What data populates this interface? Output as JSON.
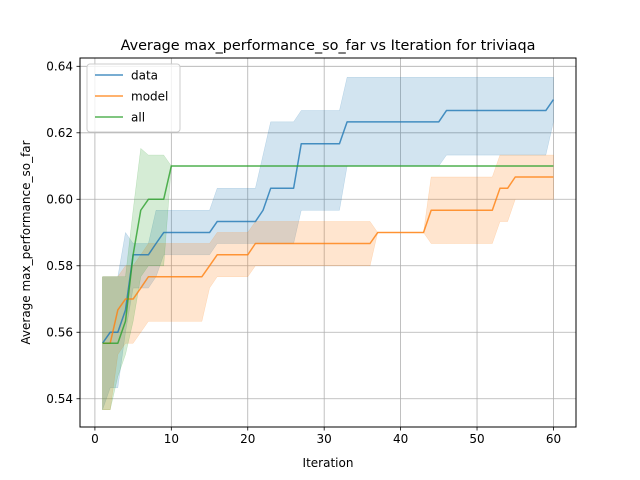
{
  "chart_data": {
    "type": "line",
    "title": "Average max_performance_so_far vs Iteration for triviaqa",
    "xlabel": "Iteration",
    "ylabel": "Average max_performance_so_far",
    "xlim": [
      -1.95,
      62.95
    ],
    "ylim": [
      0.5315,
      0.6425
    ],
    "xticks": [
      0,
      10,
      20,
      30,
      40,
      50,
      60
    ],
    "yticks": [
      0.54,
      0.56,
      0.58,
      0.6,
      0.62,
      0.64
    ],
    "ytick_labels": [
      "0.54",
      "0.56",
      "0.58",
      "0.60",
      "0.62",
      "0.64"
    ],
    "grid": true,
    "legend_position": "upper-left",
    "series": [
      {
        "name": "data",
        "color": "#1f77b4",
        "x": [
          1,
          2,
          3,
          4,
          5,
          6,
          7,
          8,
          9,
          10,
          11,
          12,
          13,
          14,
          15,
          16,
          17,
          18,
          19,
          20,
          21,
          22,
          23,
          24,
          25,
          26,
          27,
          28,
          29,
          30,
          31,
          32,
          33,
          34,
          35,
          36,
          37,
          38,
          39,
          40,
          41,
          42,
          43,
          44,
          45,
          46,
          47,
          48,
          49,
          50,
          51,
          52,
          53,
          54,
          55,
          56,
          57,
          58,
          59,
          60
        ],
        "y": [
          0.5567,
          0.56,
          0.56,
          0.5667,
          0.5833,
          0.5833,
          0.5833,
          0.5867,
          0.59,
          0.59,
          0.59,
          0.59,
          0.59,
          0.59,
          0.59,
          0.5933,
          0.5933,
          0.5933,
          0.5933,
          0.5933,
          0.5933,
          0.5967,
          0.6033,
          0.6033,
          0.6033,
          0.6033,
          0.6167,
          0.6167,
          0.6167,
          0.6167,
          0.6167,
          0.6167,
          0.6233,
          0.6233,
          0.6233,
          0.6233,
          0.6233,
          0.6233,
          0.6233,
          0.6233,
          0.6233,
          0.6233,
          0.6233,
          0.6233,
          0.6233,
          0.6267,
          0.6267,
          0.6267,
          0.6267,
          0.6267,
          0.6267,
          0.6267,
          0.6267,
          0.6267,
          0.6267,
          0.6267,
          0.6267,
          0.6267,
          0.6267,
          0.63
        ],
        "lower": [
          0.5367,
          0.5433,
          0.5433,
          0.56,
          0.5733,
          0.5733,
          0.5733,
          0.5767,
          0.5833,
          0.5833,
          0.5833,
          0.5833,
          0.5833,
          0.5833,
          0.5833,
          0.5867,
          0.5867,
          0.5867,
          0.5867,
          0.5867,
          0.5867,
          0.5867,
          0.5867,
          0.5867,
          0.5867,
          0.5867,
          0.5967,
          0.5967,
          0.5967,
          0.5967,
          0.5967,
          0.5967,
          0.61,
          0.61,
          0.61,
          0.61,
          0.61,
          0.61,
          0.61,
          0.61,
          0.61,
          0.61,
          0.61,
          0.61,
          0.61,
          0.6133,
          0.6133,
          0.6133,
          0.6133,
          0.6133,
          0.6133,
          0.6133,
          0.6133,
          0.6133,
          0.6133,
          0.6133,
          0.6133,
          0.6133,
          0.6133,
          0.6233
        ],
        "upper": [
          0.5767,
          0.5767,
          0.5767,
          0.59,
          0.5867,
          0.5867,
          0.5867,
          0.5967,
          0.5967,
          0.5967,
          0.5967,
          0.5967,
          0.5967,
          0.5967,
          0.5967,
          0.6033,
          0.6033,
          0.6033,
          0.6033,
          0.6033,
          0.6033,
          0.6133,
          0.6233,
          0.6233,
          0.6233,
          0.6233,
          0.6267,
          0.6267,
          0.6267,
          0.6267,
          0.6267,
          0.6267,
          0.6367,
          0.6367,
          0.6367,
          0.6367,
          0.6367,
          0.6367,
          0.6367,
          0.6367,
          0.6367,
          0.6367,
          0.6367,
          0.6367,
          0.6367,
          0.6367,
          0.6367,
          0.6367,
          0.6367,
          0.6367,
          0.6367,
          0.6367,
          0.6367,
          0.6367,
          0.6367,
          0.6367,
          0.6367,
          0.6367,
          0.6367,
          0.6367
        ]
      },
      {
        "name": "model",
        "color": "#ff7f0e",
        "x": [
          1,
          2,
          3,
          4,
          5,
          6,
          7,
          8,
          9,
          10,
          11,
          12,
          13,
          14,
          15,
          16,
          17,
          18,
          19,
          20,
          21,
          22,
          23,
          24,
          25,
          26,
          27,
          28,
          29,
          30,
          31,
          32,
          33,
          34,
          35,
          36,
          37,
          38,
          39,
          40,
          41,
          42,
          43,
          44,
          45,
          46,
          47,
          48,
          49,
          50,
          51,
          52,
          53,
          54,
          55,
          56,
          57,
          58,
          59,
          60
        ],
        "y": [
          0.5567,
          0.5567,
          0.5667,
          0.57,
          0.57,
          0.5733,
          0.5767,
          0.5767,
          0.5767,
          0.5767,
          0.5767,
          0.5767,
          0.5767,
          0.5767,
          0.58,
          0.5833,
          0.5833,
          0.5833,
          0.5833,
          0.5833,
          0.5867,
          0.5867,
          0.5867,
          0.5867,
          0.5867,
          0.5867,
          0.5867,
          0.5867,
          0.5867,
          0.5867,
          0.5867,
          0.5867,
          0.5867,
          0.5867,
          0.5867,
          0.5867,
          0.59,
          0.59,
          0.59,
          0.59,
          0.59,
          0.59,
          0.59,
          0.5967,
          0.5967,
          0.5967,
          0.5967,
          0.5967,
          0.5967,
          0.5967,
          0.5967,
          0.5967,
          0.6033,
          0.6033,
          0.6067,
          0.6067,
          0.6067,
          0.6067,
          0.6067,
          0.6067
        ],
        "lower": [
          0.5367,
          0.5367,
          0.5533,
          0.5567,
          0.5567,
          0.56,
          0.5633,
          0.5633,
          0.5633,
          0.5633,
          0.5633,
          0.5633,
          0.5633,
          0.5633,
          0.5733,
          0.5767,
          0.5767,
          0.5767,
          0.5767,
          0.5767,
          0.58,
          0.58,
          0.58,
          0.58,
          0.58,
          0.58,
          0.58,
          0.58,
          0.58,
          0.58,
          0.58,
          0.58,
          0.58,
          0.58,
          0.58,
          0.58,
          0.59,
          0.59,
          0.59,
          0.59,
          0.59,
          0.59,
          0.59,
          0.5867,
          0.5867,
          0.5867,
          0.5867,
          0.5867,
          0.5867,
          0.5867,
          0.5867,
          0.5867,
          0.5933,
          0.5933,
          0.6,
          0.6,
          0.6,
          0.6,
          0.6,
          0.6
        ],
        "upper": [
          0.5767,
          0.5767,
          0.5767,
          0.58,
          0.58,
          0.5833,
          0.5867,
          0.5867,
          0.5867,
          0.5867,
          0.5867,
          0.5867,
          0.5867,
          0.5867,
          0.5867,
          0.59,
          0.59,
          0.59,
          0.59,
          0.59,
          0.5933,
          0.5933,
          0.5933,
          0.5933,
          0.5933,
          0.5933,
          0.5933,
          0.5933,
          0.5933,
          0.5933,
          0.5933,
          0.5933,
          0.5933,
          0.5933,
          0.5933,
          0.5933,
          0.59,
          0.59,
          0.59,
          0.59,
          0.59,
          0.59,
          0.59,
          0.6067,
          0.6067,
          0.6067,
          0.6067,
          0.6067,
          0.6067,
          0.6067,
          0.6067,
          0.6067,
          0.6133,
          0.6133,
          0.6133,
          0.6133,
          0.6133,
          0.6133,
          0.6133,
          0.6133
        ]
      },
      {
        "name": "all",
        "color": "#2ca02c",
        "x": [
          1,
          2,
          3,
          4,
          5,
          6,
          7,
          8,
          9,
          10,
          11,
          12,
          13,
          14,
          15,
          16,
          17,
          18,
          19,
          20,
          21,
          22,
          23,
          24,
          25,
          26,
          27,
          28,
          29,
          30,
          31,
          32,
          33,
          34,
          35,
          36,
          37,
          38,
          39,
          40,
          41,
          42,
          43,
          44,
          45,
          46,
          47,
          48,
          49,
          50,
          51,
          52,
          53,
          54,
          55,
          56,
          57,
          58,
          59,
          60
        ],
        "y": [
          0.5567,
          0.5567,
          0.5567,
          0.5633,
          0.5833,
          0.5967,
          0.6,
          0.6,
          0.6,
          0.61,
          0.61,
          0.61,
          0.61,
          0.61,
          0.61,
          0.61,
          0.61,
          0.61,
          0.61,
          0.61,
          0.61,
          0.61,
          0.61,
          0.61,
          0.61,
          0.61,
          0.61,
          0.61,
          0.61,
          0.61,
          0.61,
          0.61,
          0.61,
          0.61,
          0.61,
          0.61,
          0.61,
          0.61,
          0.61,
          0.61,
          0.61,
          0.61,
          0.61,
          0.61,
          0.61,
          0.61,
          0.61,
          0.61,
          0.61,
          0.61,
          0.61,
          0.61,
          0.61,
          0.61,
          0.61,
          0.61,
          0.61,
          0.61,
          0.61,
          0.61
        ],
        "lower": [
          0.5367,
          0.5367,
          0.5467,
          0.5533,
          0.5633,
          0.5767,
          0.58,
          0.58,
          0.58,
          0.61,
          0.61,
          0.61,
          0.61,
          0.61,
          0.61,
          0.61,
          0.61,
          0.61,
          0.61,
          0.61,
          0.61,
          0.61,
          0.61,
          0.61,
          0.61,
          0.61,
          0.61,
          0.61,
          0.61,
          0.61,
          0.61,
          0.61,
          0.61,
          0.61,
          0.61,
          0.61,
          0.61,
          0.61,
          0.61,
          0.61,
          0.61,
          0.61,
          0.61,
          0.61,
          0.61,
          0.61,
          0.61,
          0.61,
          0.61,
          0.61,
          0.61,
          0.61,
          0.61,
          0.61,
          0.61,
          0.61,
          0.61,
          0.61,
          0.61,
          0.61
        ],
        "upper": [
          0.5767,
          0.5767,
          0.5767,
          0.5767,
          0.5967,
          0.6153,
          0.6133,
          0.6133,
          0.6133,
          0.61,
          0.61,
          0.61,
          0.61,
          0.61,
          0.61,
          0.61,
          0.61,
          0.61,
          0.61,
          0.61,
          0.61,
          0.61,
          0.61,
          0.61,
          0.61,
          0.61,
          0.61,
          0.61,
          0.61,
          0.61,
          0.61,
          0.61,
          0.61,
          0.61,
          0.61,
          0.61,
          0.61,
          0.61,
          0.61,
          0.61,
          0.61,
          0.61,
          0.61,
          0.61,
          0.61,
          0.61,
          0.61,
          0.61,
          0.61,
          0.61,
          0.61,
          0.61,
          0.61,
          0.61,
          0.61,
          0.61,
          0.61,
          0.61,
          0.61,
          0.61
        ]
      }
    ]
  }
}
